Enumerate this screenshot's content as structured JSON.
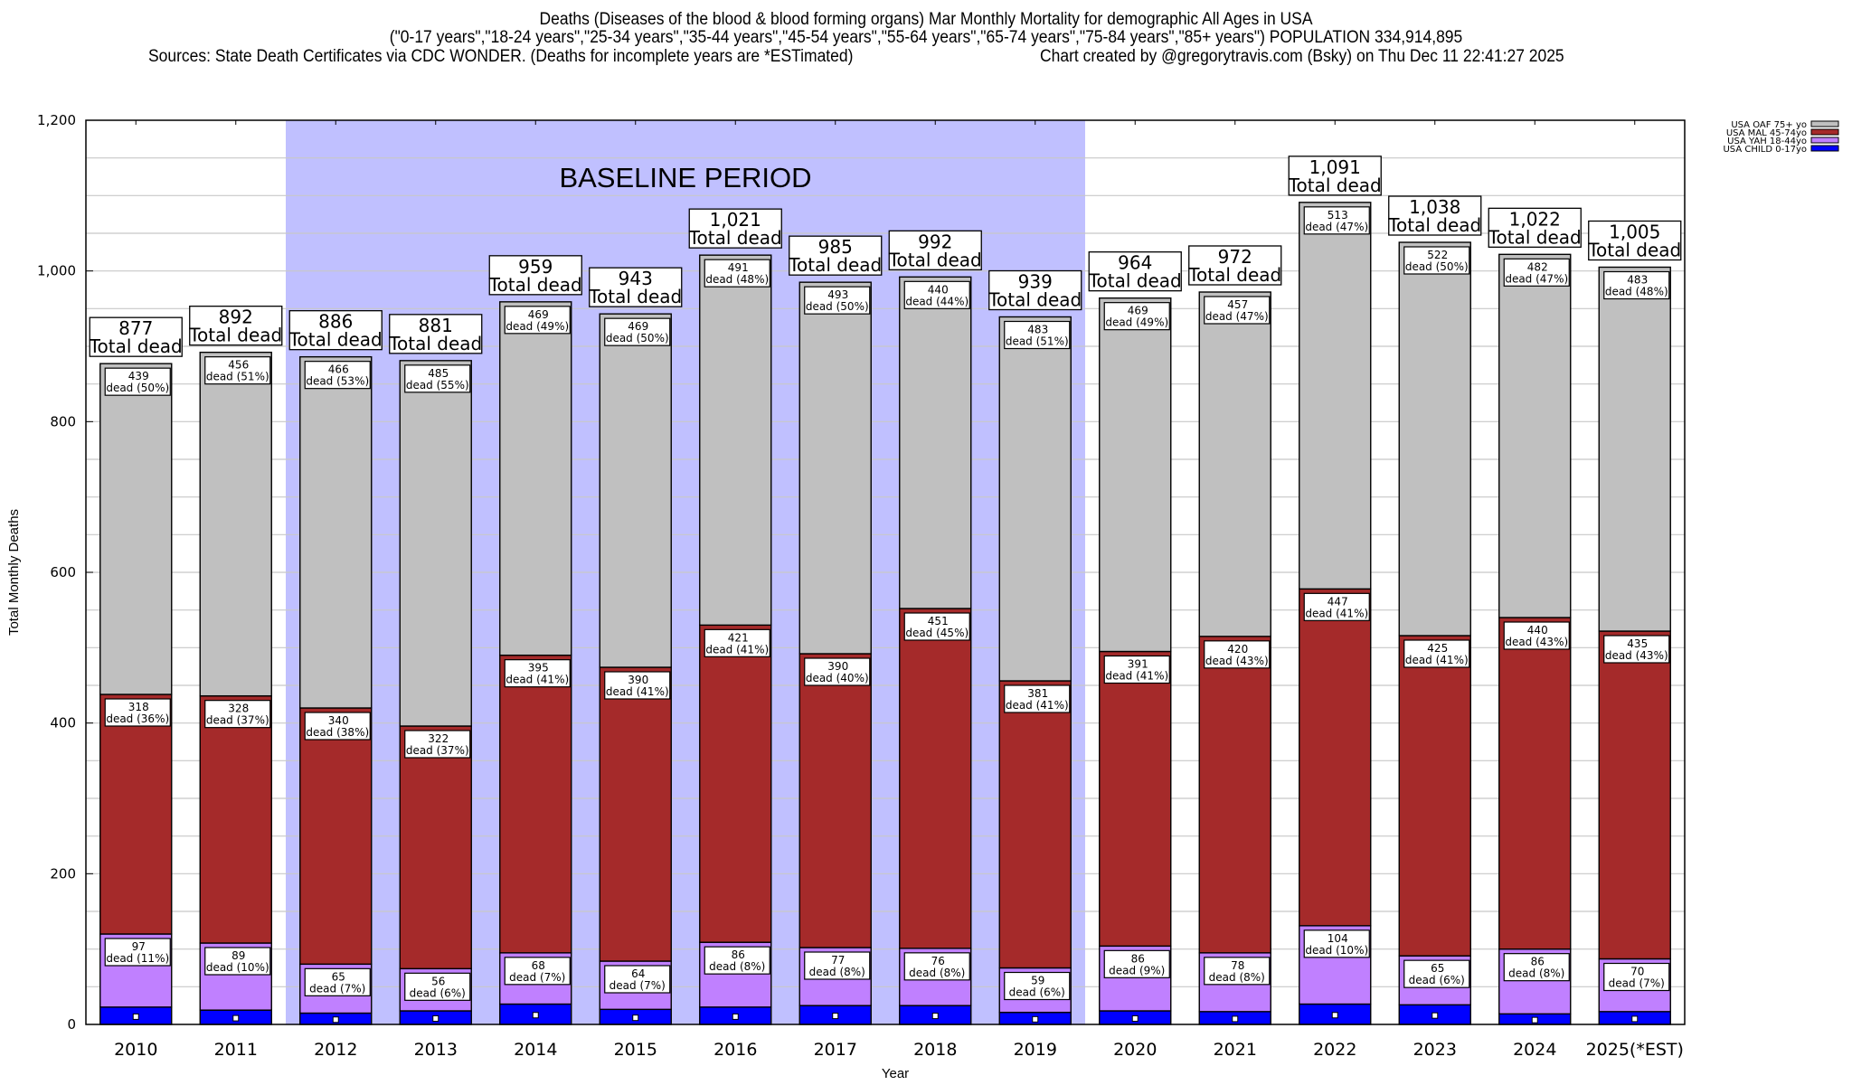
{
  "header": {
    "title": "Deaths (Diseases of the blood & blood forming organs) Mar Monthly Mortality for demographic All Ages in USA",
    "subtitle": "(\"0-17 years\",\"18-24 years\",\"25-34 years\",\"35-44 years\",\"45-54 years\",\"55-64 years\",\"65-74 years\",\"75-84 years\",\"85+ years\") POPULATION 334,914,895",
    "sources": "Sources: State Death Certificates via CDC WONDER. (Deaths for incomplete years are *ESTimated)",
    "credit": "Chart created by @gregorytravis.com (Bsky) on Thu Dec 11 22:41:27 2025"
  },
  "chart_data": {
    "type": "bar",
    "stacked": true,
    "title": "Deaths (Diseases of the blood & blood forming organs) Mar Monthly Mortality for demographic All Ages in USA",
    "xlabel": "Year",
    "ylabel": "Total Monthly Deaths",
    "ylim": [
      0,
      1200
    ],
    "yticks": [
      0,
      200,
      400,
      600,
      800,
      1000,
      1200
    ],
    "ytick_labels": [
      "0",
      "200",
      "400",
      "600",
      "800",
      "1,000",
      "1,200"
    ],
    "grid": true,
    "legend_position": "top-right",
    "categories": [
      "2010",
      "2011",
      "2012",
      "2013",
      "2014",
      "2015",
      "2016",
      "2017",
      "2018",
      "2019",
      "2020",
      "2021",
      "2022",
      "2023",
      "2024",
      "2025(*EST)"
    ],
    "baseline_period": {
      "label": "BASELINE PERIOD",
      "start": "2012",
      "end": "2019",
      "color": "#c0c0ff"
    },
    "series": [
      {
        "name": "USA CHILD 0-17yo",
        "color": "#0000ff",
        "values": [
          23,
          19,
          15,
          18,
          27,
          20,
          23,
          25,
          25,
          16,
          18,
          17,
          27,
          26,
          14,
          17
        ],
        "labeled": false
      },
      {
        "name": "USA YAH 18-44yo",
        "color": "#c080ff",
        "values": [
          97,
          89,
          65,
          56,
          68,
          64,
          86,
          77,
          76,
          59,
          86,
          78,
          104,
          65,
          86,
          70
        ],
        "percents": [
          11,
          10,
          7,
          6,
          7,
          7,
          8,
          8,
          8,
          6,
          9,
          8,
          10,
          6,
          8,
          7
        ],
        "labeled": true
      },
      {
        "name": "USA MAL 45-74yo",
        "color": "#a52a2a",
        "values": [
          318,
          328,
          340,
          322,
          395,
          390,
          421,
          390,
          451,
          381,
          391,
          420,
          447,
          425,
          440,
          435
        ],
        "percents": [
          36,
          37,
          38,
          37,
          41,
          41,
          41,
          40,
          45,
          41,
          41,
          43,
          41,
          41,
          43,
          43
        ],
        "labeled": true
      },
      {
        "name": "USA OAF 75+ yo",
        "color": "#c0c0c0",
        "values": [
          439,
          456,
          466,
          485,
          469,
          469,
          491,
          493,
          440,
          483,
          469,
          457,
          513,
          522,
          482,
          483
        ],
        "percents": [
          50,
          51,
          53,
          55,
          49,
          50,
          48,
          50,
          44,
          51,
          49,
          47,
          47,
          50,
          47,
          48
        ],
        "labeled": true
      }
    ],
    "totals": [
      877,
      892,
      886,
      881,
      959,
      943,
      1021,
      985,
      992,
      939,
      964,
      972,
      1091,
      1038,
      1022,
      1005
    ],
    "total_labels": [
      "877",
      "892",
      "886",
      "881",
      "959",
      "943",
      "1,021",
      "985",
      "992",
      "939",
      "964",
      "972",
      "1,091",
      "1,038",
      "1,022",
      "1,005"
    ],
    "total_suffix": "Total dead",
    "segment_suffix": "dead",
    "legend_order": [
      "USA OAF 75+ yo",
      "USA MAL 45-74yo",
      "USA YAH 18-44yo",
      "USA CHILD 0-17yo"
    ]
  }
}
